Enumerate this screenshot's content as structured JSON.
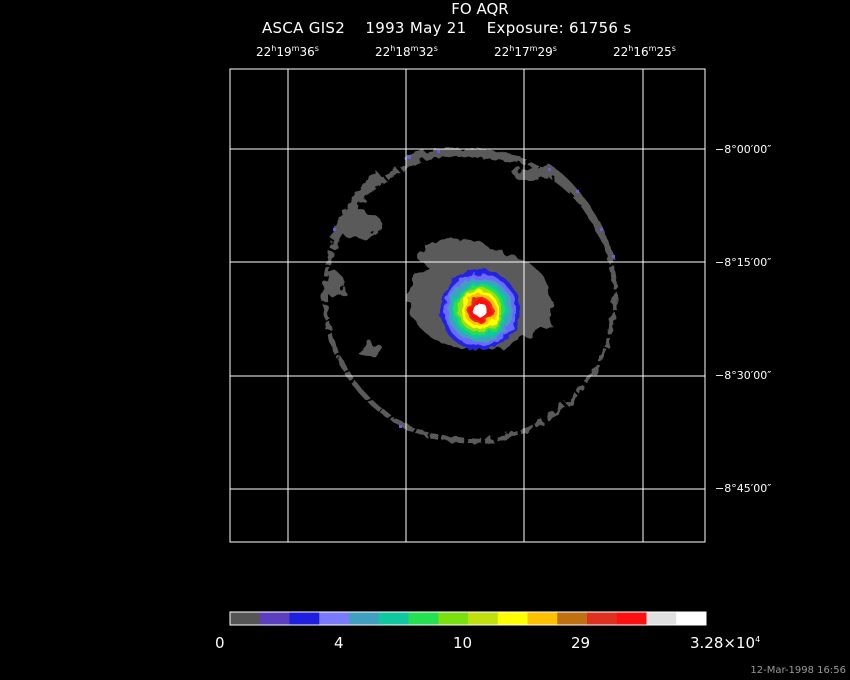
{
  "header": {
    "title": "FO AQR",
    "subtitle_instrument": "ASCA GIS2",
    "subtitle_date": "1993 May 21",
    "subtitle_exposure": "Exposure: 61756 s"
  },
  "ra_ticks": [
    {
      "h": "22",
      "m": "19",
      "s": "36"
    },
    {
      "h": "22",
      "m": "18",
      "s": "32"
    },
    {
      "h": "22",
      "m": "17",
      "s": "29"
    },
    {
      "h": "22",
      "m": "16",
      "s": "25"
    }
  ],
  "dec_ticks": [
    "−8°00′00″",
    "−8°15′00″",
    "−8°30′00″",
    "−8°45′00″"
  ],
  "colorbar": {
    "labels": [
      "0",
      "4",
      "10",
      "29",
      "3.28×10"
    ],
    "exponent": "4",
    "colors": [
      "#555555",
      "#5b3fc0",
      "#1f1fe0",
      "#7a7aff",
      "#3fa0c0",
      "#10c8a0",
      "#25e050",
      "#7be010",
      "#c0e010",
      "#ffff00",
      "#ffc000",
      "#c07010",
      "#e03020",
      "#ff1010",
      "#e0e0e0",
      "#ffffff"
    ]
  },
  "timestamp": "12-Mar-1998 16:56"
}
